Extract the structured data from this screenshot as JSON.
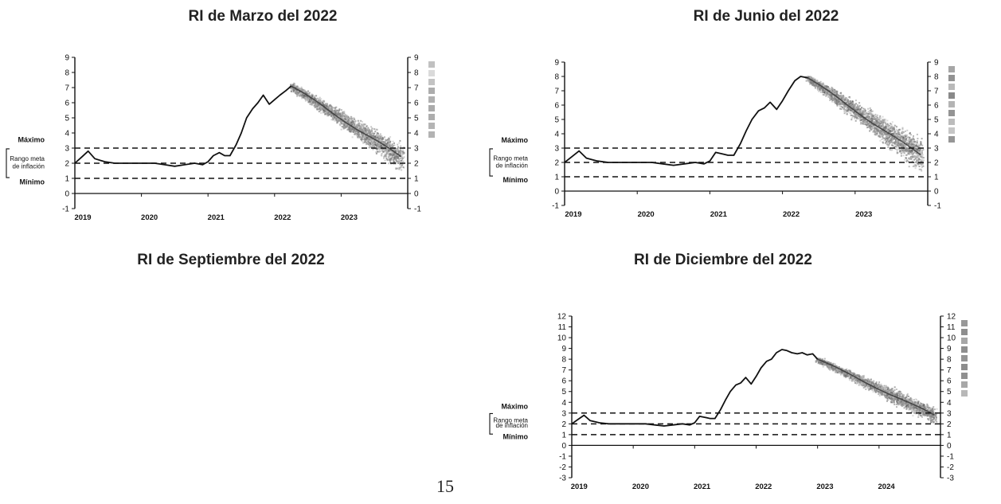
{
  "page": {
    "number": "15"
  },
  "panels": [
    {
      "title": "RI de Marzo del 2022"
    },
    {
      "title": "RI de Junio del 2022"
    },
    {
      "title": "RI de Septiembre del 2022"
    },
    {
      "title": "RI de Diciembre del 2022"
    }
  ],
  "band_labels": {
    "max": "Máximo",
    "range_1": "Rango meta",
    "range_2": "de inflación",
    "min": "Mínimo"
  },
  "colors": {
    "line": "#111111",
    "fan": "#7a7a7a",
    "axis": "#111111",
    "dashed": "#111111"
  },
  "chart_data": [
    {
      "panel": "RI de Marzo del 2022",
      "type": "line",
      "x_ticks": [
        "2019",
        "2020",
        "2021",
        "2022",
        "2023"
      ],
      "xlim": [
        2019,
        2024
      ],
      "ylim": [
        -1,
        9
      ],
      "y_ticks": [
        -1,
        0,
        1,
        2,
        3,
        4,
        5,
        6,
        7,
        8,
        9
      ],
      "reference_lines": [
        1,
        2,
        3
      ],
      "series": [
        {
          "x": [
            2019.0,
            2019.1,
            2019.2,
            2019.3,
            2019.45,
            2019.6,
            2019.75,
            2020.0,
            2020.2,
            2020.35,
            2020.5,
            2020.65,
            2020.8,
            2020.92,
            2021.0,
            2021.08,
            2021.17,
            2021.25,
            2021.33,
            2021.42,
            2021.5,
            2021.58,
            2021.67,
            2021.75,
            2021.83,
            2021.92,
            2022.0,
            2022.08,
            2022.17,
            2022.25
          ],
          "y": [
            2.0,
            2.4,
            2.8,
            2.3,
            2.1,
            2.0,
            2.0,
            2.0,
            2.0,
            1.9,
            1.8,
            1.9,
            2.0,
            1.9,
            2.1,
            2.5,
            2.7,
            2.5,
            2.5,
            3.2,
            4.0,
            5.0,
            5.6,
            6.0,
            6.5,
            5.9,
            6.2,
            6.5,
            6.8,
            7.1
          ]
        }
      ],
      "fan": {
        "start": 2022.25,
        "end": 2023.9,
        "center_start": 7.1,
        "center_end": 2.4,
        "width_start": 0.3,
        "width_end": 1.2
      }
    },
    {
      "panel": "RI de Junio del 2022",
      "type": "line",
      "x_ticks": [
        "2019",
        "2020",
        "2021",
        "2022",
        "2023"
      ],
      "xlim": [
        2019,
        2024
      ],
      "ylim": [
        -1,
        9
      ],
      "y_ticks": [
        -1,
        0,
        1,
        2,
        3,
        4,
        5,
        6,
        7,
        8,
        9
      ],
      "reference_lines": [
        1,
        2,
        3
      ],
      "series": [
        {
          "x": [
            2019.0,
            2019.1,
            2019.2,
            2019.3,
            2019.45,
            2019.6,
            2019.75,
            2020.0,
            2020.2,
            2020.35,
            2020.5,
            2020.65,
            2020.8,
            2020.92,
            2021.0,
            2021.08,
            2021.17,
            2021.25,
            2021.33,
            2021.42,
            2021.5,
            2021.58,
            2021.67,
            2021.75,
            2021.83,
            2021.92,
            2022.0,
            2022.08,
            2022.17,
            2022.25,
            2022.35
          ],
          "y": [
            2.0,
            2.4,
            2.8,
            2.3,
            2.1,
            2.0,
            2.0,
            2.0,
            2.0,
            1.9,
            1.8,
            1.9,
            2.0,
            1.9,
            2.1,
            2.7,
            2.6,
            2.5,
            2.5,
            3.3,
            4.2,
            5.0,
            5.6,
            5.8,
            6.2,
            5.7,
            6.3,
            7.0,
            7.7,
            8.0,
            7.9
          ]
        }
      ],
      "fan": {
        "start": 2022.35,
        "end": 2023.9,
        "center_start": 7.9,
        "center_end": 2.5,
        "width_start": 0.3,
        "width_end": 1.6
      }
    },
    {
      "panel": "RI de Septiembre del 2022",
      "type": "line",
      "series": []
    },
    {
      "panel": "RI de Diciembre del 2022",
      "type": "line",
      "x_ticks": [
        "2019",
        "2020",
        "2021",
        "2022",
        "2023",
        "2024"
      ],
      "xlim": [
        2019,
        2025
      ],
      "ylim": [
        -3,
        12
      ],
      "y_ticks": [
        -3,
        -2,
        -1,
        0,
        1,
        2,
        3,
        4,
        5,
        6,
        7,
        8,
        9,
        10,
        11,
        12
      ],
      "reference_lines": [
        1,
        2,
        3
      ],
      "series": [
        {
          "x": [
            2019.0,
            2019.1,
            2019.2,
            2019.3,
            2019.45,
            2019.6,
            2019.75,
            2020.0,
            2020.2,
            2020.35,
            2020.5,
            2020.65,
            2020.8,
            2020.92,
            2021.0,
            2021.08,
            2021.17,
            2021.25,
            2021.33,
            2021.42,
            2021.5,
            2021.58,
            2021.67,
            2021.75,
            2021.83,
            2021.92,
            2022.0,
            2022.08,
            2022.17,
            2022.25,
            2022.33,
            2022.42,
            2022.5,
            2022.58,
            2022.67,
            2022.75,
            2022.83,
            2022.92,
            2023.0
          ],
          "y": [
            2.0,
            2.4,
            2.8,
            2.3,
            2.1,
            2.0,
            2.0,
            2.0,
            2.0,
            1.9,
            1.8,
            1.9,
            2.0,
            1.9,
            2.1,
            2.7,
            2.6,
            2.5,
            2.5,
            3.3,
            4.2,
            5.0,
            5.6,
            5.8,
            6.3,
            5.7,
            6.4,
            7.2,
            7.8,
            8.0,
            8.6,
            8.9,
            8.8,
            8.6,
            8.5,
            8.6,
            8.4,
            8.5,
            8.0
          ]
        }
      ],
      "fan": {
        "start": 2023.0,
        "end": 2024.9,
        "center_start": 8.0,
        "center_end": 2.8,
        "width_start": 0.3,
        "width_end": 1.1
      }
    }
  ]
}
